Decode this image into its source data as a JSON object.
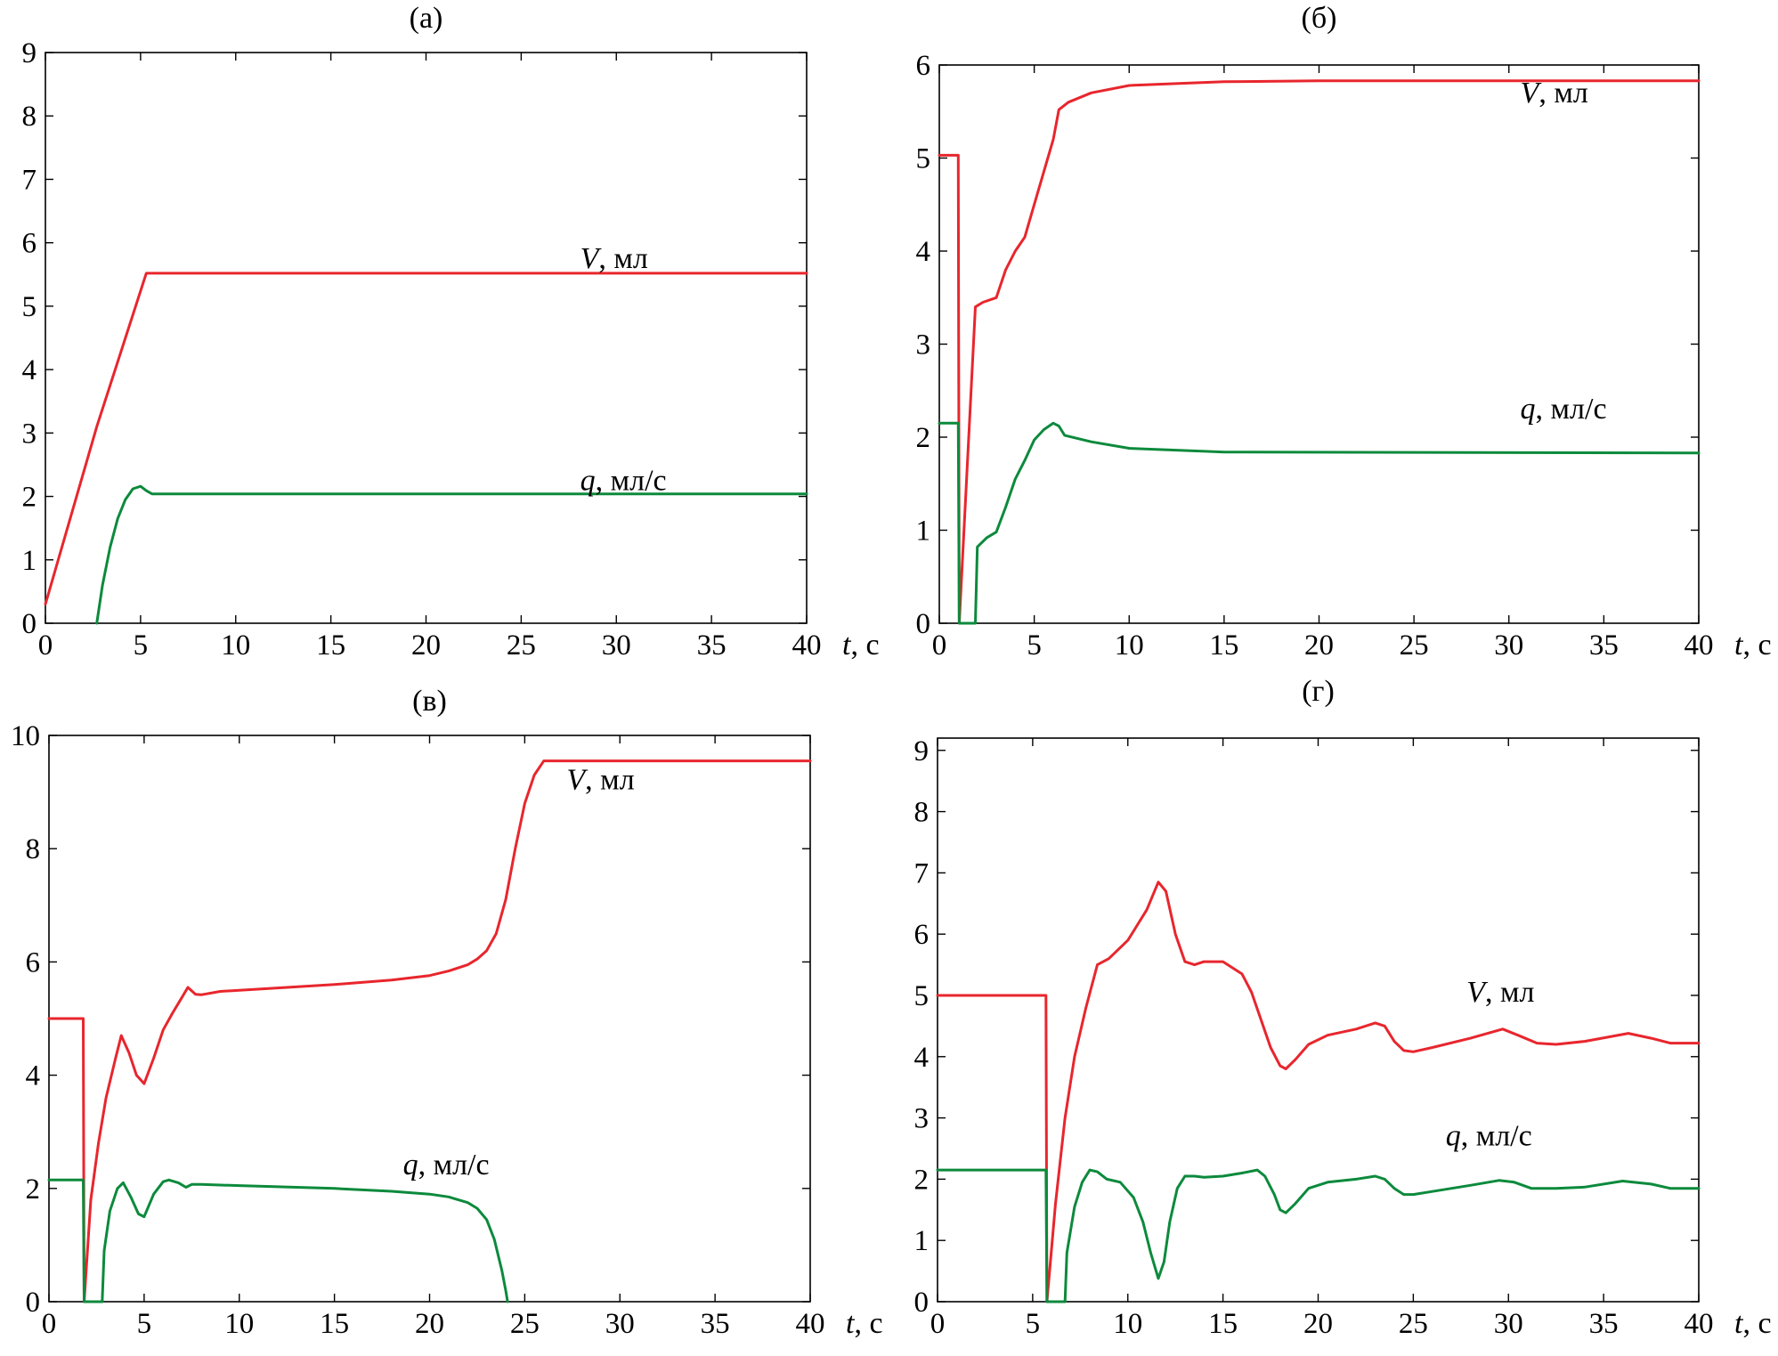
{
  "colors": {
    "V": "#e8262d",
    "q": "#0c8a3c",
    "axis": "#000000"
  },
  "chart_data": [
    {
      "type": "line",
      "title": "(а)",
      "xlabel_var": "t",
      "xlabel_unit": ", с",
      "xlim": [
        0,
        40
      ],
      "ylim": [
        0,
        9
      ],
      "xticks": [
        0,
        5,
        10,
        15,
        20,
        25,
        30,
        35,
        40
      ],
      "yticks": [
        0,
        1,
        2,
        3,
        4,
        5,
        6,
        7,
        8,
        9
      ],
      "series": [
        {
          "key": "V",
          "name_var": "V",
          "name_unit": ", мл",
          "label_at": [
            28.1,
            5.6
          ],
          "x": [
            0,
            2.7,
            5.3,
            40
          ],
          "y": [
            0.3,
            3.1,
            5.52,
            5.52
          ]
        },
        {
          "key": "q",
          "name_var": "q",
          "name_unit": ", мл/с",
          "label_at": [
            28.1,
            2.1
          ],
          "x": [
            2.7,
            3.0,
            3.4,
            3.8,
            4.2,
            4.6,
            5.0,
            5.3,
            5.6,
            40
          ],
          "y": [
            0,
            0.6,
            1.2,
            1.65,
            1.95,
            2.12,
            2.16,
            2.09,
            2.04,
            2.04
          ]
        }
      ]
    },
    {
      "type": "line",
      "title": "(б)",
      "xlabel_var": "t",
      "xlabel_unit": ", с",
      "xlim": [
        0,
        40
      ],
      "ylim": [
        0,
        6
      ],
      "xticks": [
        0,
        5,
        10,
        15,
        20,
        25,
        30,
        35,
        40
      ],
      "yticks": [
        0,
        1,
        2,
        3,
        4,
        5,
        6
      ],
      "series": [
        {
          "key": "V",
          "name_var": "V",
          "name_unit": ", мл",
          "label_at": [
            30.6,
            5.6
          ],
          "x": [
            0,
            1.0,
            1.05,
            1.9,
            2.3,
            3.0,
            3.5,
            4.0,
            4.5,
            5.0,
            5.5,
            6.0,
            6.3,
            6.8,
            8.0,
            10.0,
            15.0,
            20.0,
            40.0
          ],
          "y": [
            5.03,
            5.03,
            0,
            3.4,
            3.45,
            3.5,
            3.8,
            4.0,
            4.15,
            4.5,
            4.85,
            5.2,
            5.52,
            5.6,
            5.7,
            5.78,
            5.82,
            5.83,
            5.83
          ]
        },
        {
          "key": "q",
          "name_var": "q",
          "name_unit": ", мл/с",
          "label_at": [
            30.6,
            2.2
          ],
          "x": [
            0,
            1.0,
            1.05,
            1.15,
            1.9,
            2.0,
            2.5,
            3.0,
            3.5,
            4.0,
            4.5,
            5.0,
            5.5,
            6.0,
            6.3,
            6.6,
            8.0,
            10.0,
            15.0,
            40.0
          ],
          "y": [
            2.15,
            2.15,
            0,
            0,
            0,
            0.82,
            0.92,
            0.98,
            1.25,
            1.55,
            1.75,
            1.97,
            2.08,
            2.15,
            2.12,
            2.02,
            1.95,
            1.88,
            1.84,
            1.83
          ]
        }
      ]
    },
    {
      "type": "line",
      "title": "(в)",
      "xlabel_var": "t",
      "xlabel_unit": ", с",
      "xlim": [
        0,
        40
      ],
      "ylim": [
        0,
        10
      ],
      "xticks": [
        0,
        5,
        10,
        15,
        20,
        25,
        30,
        35,
        40
      ],
      "yticks": [
        0,
        2,
        4,
        6,
        8,
        10
      ],
      "series": [
        {
          "key": "V",
          "name_var": "V",
          "name_unit": ", мл",
          "label_at": [
            27.2,
            9.05
          ],
          "x": [
            0,
            1.8,
            1.85,
            2.2,
            2.6,
            3.0,
            3.5,
            3.8,
            4.2,
            4.6,
            5.0,
            5.5,
            6.0,
            6.5,
            7.0,
            7.3,
            7.7,
            8.0,
            9.0,
            10.0,
            15.0,
            18.0,
            20.0,
            21.0,
            22.0,
            22.5,
            23.0,
            23.5,
            24.0,
            24.5,
            25.0,
            25.5,
            26.0,
            26.3,
            27.0,
            40.0
          ],
          "y": [
            5.0,
            5.0,
            0,
            1.8,
            2.8,
            3.6,
            4.3,
            4.7,
            4.4,
            4.0,
            3.85,
            4.3,
            4.8,
            5.1,
            5.38,
            5.55,
            5.43,
            5.42,
            5.48,
            5.5,
            5.6,
            5.68,
            5.76,
            5.84,
            5.95,
            6.05,
            6.2,
            6.5,
            7.1,
            8.0,
            8.8,
            9.3,
            9.55,
            9.55,
            9.55,
            9.55
          ]
        },
        {
          "key": "q",
          "name_var": "q",
          "name_unit": ", мл/с",
          "label_at": [
            18.6,
            2.25
          ],
          "x": [
            0,
            1.8,
            1.85,
            2.8,
            2.9,
            3.2,
            3.6,
            3.9,
            4.3,
            4.7,
            5.0,
            5.5,
            6.0,
            6.3,
            6.8,
            7.2,
            7.5,
            8.0,
            9.0,
            10.0,
            15.0,
            18.0,
            20.0,
            21.0,
            22.0,
            22.5,
            23.0,
            23.4,
            23.8,
            24.0,
            24.1
          ],
          "y": [
            2.15,
            2.15,
            0,
            0,
            0.9,
            1.6,
            2.0,
            2.1,
            1.85,
            1.55,
            1.5,
            1.9,
            2.12,
            2.15,
            2.1,
            2.02,
            2.07,
            2.07,
            2.06,
            2.05,
            2.0,
            1.95,
            1.9,
            1.85,
            1.75,
            1.65,
            1.45,
            1.1,
            0.55,
            0.2,
            0
          ]
        }
      ]
    },
    {
      "type": "line",
      "title": "(г)",
      "xlabel_var": "t",
      "xlabel_unit": ", с",
      "xlim": [
        0,
        40
      ],
      "ylim": [
        0,
        9.2
      ],
      "xticks": [
        0,
        5,
        10,
        15,
        20,
        25,
        30,
        35,
        40
      ],
      "yticks": [
        0,
        1,
        2,
        3,
        4,
        5,
        6,
        7,
        8,
        9
      ],
      "series": [
        {
          "key": "V",
          "name_var": "V",
          "name_unit": ", мл",
          "label_at": [
            27.8,
            4.9
          ],
          "x": [
            0,
            5.7,
            5.75,
            6.2,
            6.7,
            7.2,
            7.8,
            8.4,
            9.0,
            10.0,
            11.0,
            11.6,
            12.0,
            12.5,
            13.0,
            13.5,
            14.0,
            15.0,
            16.0,
            16.5,
            17.0,
            17.5,
            18.0,
            18.3,
            18.8,
            19.5,
            20.5,
            22.0,
            23.0,
            23.5,
            24.0,
            24.5,
            25.0,
            26.0,
            28.0,
            29.7,
            30.5,
            31.5,
            32.5,
            34.0,
            36.3,
            37.5,
            38.5,
            40.0
          ],
          "y": [
            5.0,
            5.0,
            0,
            1.6,
            3.0,
            4.0,
            4.8,
            5.5,
            5.6,
            5.9,
            6.4,
            6.85,
            6.7,
            6.0,
            5.55,
            5.5,
            5.55,
            5.55,
            5.35,
            5.05,
            4.6,
            4.15,
            3.85,
            3.8,
            3.95,
            4.2,
            4.35,
            4.45,
            4.55,
            4.5,
            4.25,
            4.1,
            4.08,
            4.15,
            4.3,
            4.45,
            4.35,
            4.22,
            4.2,
            4.25,
            4.38,
            4.3,
            4.22,
            4.22
          ]
        },
        {
          "key": "q",
          "name_var": "q",
          "name_unit": ", мл/с",
          "label_at": [
            26.7,
            2.55
          ],
          "x": [
            0,
            5.7,
            5.75,
            6.7,
            6.8,
            7.2,
            7.6,
            8.0,
            8.4,
            8.9,
            9.6,
            10.3,
            10.8,
            11.2,
            11.6,
            11.9,
            12.2,
            12.6,
            13.0,
            13.5,
            14.0,
            15.0,
            16.0,
            16.8,
            17.2,
            17.7,
            18.0,
            18.3,
            18.8,
            19.5,
            20.5,
            22.0,
            23.0,
            23.5,
            24.0,
            24.5,
            25.0,
            26.0,
            28.0,
            29.5,
            30.3,
            31.2,
            32.5,
            34.0,
            36.0,
            37.5,
            38.5,
            40.0
          ],
          "y": [
            2.15,
            2.15,
            0,
            0,
            0.8,
            1.55,
            1.95,
            2.15,
            2.12,
            2.0,
            1.95,
            1.7,
            1.3,
            0.8,
            0.38,
            0.65,
            1.3,
            1.85,
            2.05,
            2.05,
            2.03,
            2.05,
            2.1,
            2.15,
            2.05,
            1.75,
            1.5,
            1.45,
            1.6,
            1.85,
            1.95,
            2.0,
            2.05,
            2.0,
            1.85,
            1.75,
            1.75,
            1.8,
            1.9,
            1.98,
            1.95,
            1.85,
            1.85,
            1.87,
            1.97,
            1.92,
            1.85,
            1.85
          ]
        }
      ]
    }
  ]
}
